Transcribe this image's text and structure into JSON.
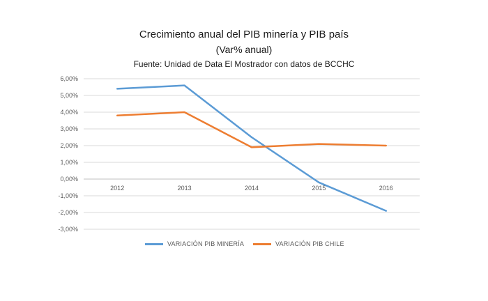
{
  "chart_data": {
    "type": "line",
    "title": "Crecimiento anual del PIB minería y PIB país",
    "subtitle": "(Var% anual)",
    "source": "Fuente: Unidad de Data El Mostrador con datos de BCCHC",
    "categories": [
      "2012",
      "2013",
      "2014",
      "2015",
      "2016"
    ],
    "series": [
      {
        "name": "VARIACIÓN PIB MINERÍA",
        "color": "#5B9BD5",
        "values": [
          5.4,
          5.6,
          2.5,
          -0.2,
          -1.9
        ]
      },
      {
        "name": "VARIACIÓN PIB CHILE",
        "color": "#ED7D31",
        "values": [
          3.8,
          4.0,
          1.9,
          2.1,
          2.0
        ]
      }
    ],
    "ylim": [
      -3,
      6
    ],
    "yticks": [
      6,
      5,
      4,
      3,
      2,
      1,
      0,
      -1,
      -2,
      -3
    ],
    "ytick_labels": [
      "6,00%",
      "5,00%",
      "4,00%",
      "3,00%",
      "2,00%",
      "1,00%",
      "0,00%",
      "-1,00%",
      "-2,00%",
      "-3,00%"
    ],
    "xlabel": "",
    "ylabel": "",
    "grid": true,
    "legend_position": "bottom"
  }
}
